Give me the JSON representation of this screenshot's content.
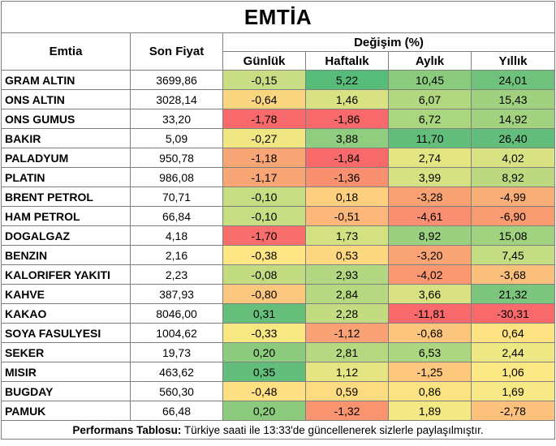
{
  "title": "EMTİA",
  "headers": {
    "name": "Emtia",
    "price": "Son Fiyat",
    "change_group": "Değişim (%)",
    "daily": "Günlük",
    "weekly": "Haftalık",
    "monthly": "Aylık",
    "yearly": "Yıllık"
  },
  "rows": [
    {
      "name": "GRAM ALTIN",
      "price": "3699,86",
      "daily": "-0,15",
      "weekly": "5,22",
      "monthly": "10,45",
      "yearly": "24,01",
      "colors": [
        "#c9de84",
        "#57bb7a",
        "#8bcb7e",
        "#6ec27c"
      ]
    },
    {
      "name": "ONS ALTIN",
      "price": "3028,14",
      "daily": "-0,64",
      "weekly": "1,46",
      "monthly": "6,07",
      "yearly": "15,43",
      "colors": [
        "#fbd681",
        "#d9e283",
        "#b1d780",
        "#9fd17f"
      ]
    },
    {
      "name": "ONS GUMUS",
      "price": "33,20",
      "daily": "-1,78",
      "weekly": "-1,86",
      "monthly": "6,72",
      "yearly": "14,92",
      "colors": [
        "#f8696b",
        "#f8696b",
        "#abd680",
        "#a1d27f"
      ]
    },
    {
      "name": "BAKIR",
      "price": "5,09",
      "daily": "-0,27",
      "weekly": "3,88",
      "monthly": "11,70",
      "yearly": "26,40",
      "colors": [
        "#f0e784",
        "#91cd7e",
        "#63be7b",
        "#63be7b"
      ]
    },
    {
      "name": "PALADYUM",
      "price": "950,78",
      "daily": "-1,18",
      "weekly": "-1,84",
      "monthly": "2,74",
      "yearly": "4,02",
      "colors": [
        "#f9a676",
        "#f8696b",
        "#e4e583",
        "#d8e283"
      ]
    },
    {
      "name": "PLATIN",
      "price": "986,08",
      "daily": "-1,17",
      "weekly": "-1,36",
      "monthly": "3,99",
      "yearly": "8,92",
      "colors": [
        "#f9a676",
        "#f99170",
        "#d5e182",
        "#bcd981"
      ]
    },
    {
      "name": "BRENT PETROL",
      "price": "70,71",
      "daily": "-0,10",
      "weekly": "0,18",
      "monthly": "-3,28",
      "yearly": "-4,99",
      "colors": [
        "#c6dd82",
        "#fdcf7e",
        "#f8a273",
        "#f9ad77"
      ]
    },
    {
      "name": "HAM PETROL",
      "price": "66,84",
      "daily": "-0,10",
      "weekly": "-0,51",
      "monthly": "-4,61",
      "yearly": "-6,90",
      "colors": [
        "#c6dd82",
        "#fcb87a",
        "#f98e70",
        "#f99b71"
      ]
    },
    {
      "name": "DOGALGAZ",
      "price": "4,18",
      "daily": "-1,70",
      "weekly": "1,73",
      "monthly": "8,92",
      "yearly": "15,08",
      "colors": [
        "#f86e6c",
        "#d4e182",
        "#9ad07f",
        "#a0d27f"
      ]
    },
    {
      "name": "BENZIN",
      "price": "2,16",
      "daily": "-0,38",
      "weekly": "0,53",
      "monthly": "-3,20",
      "yearly": "7,45",
      "colors": [
        "#fde683",
        "#fed880",
        "#f8a474",
        "#c4dc82"
      ]
    },
    {
      "name": "KALORIFER YAKITI",
      "price": "2,23",
      "daily": "-0,08",
      "weekly": "2,93",
      "monthly": "-4,02",
      "yearly": "-3,68",
      "colors": [
        "#c3dc82",
        "#b2d780",
        "#f99871",
        "#fbbf7c"
      ]
    },
    {
      "name": "KAHVE",
      "price": "387,93",
      "daily": "-0,80",
      "weekly": "2,84",
      "monthly": "3,66",
      "yearly": "21,32",
      "colors": [
        "#fbc67d",
        "#b5d880",
        "#d8e283",
        "#7cc57c"
      ]
    },
    {
      "name": "KAKAO",
      "price": "8046,00",
      "daily": "0,31",
      "weekly": "2,28",
      "monthly": "-11,81",
      "yearly": "-30,31",
      "colors": [
        "#65bf7b",
        "#c3dc82",
        "#f8696b",
        "#f8696b"
      ]
    },
    {
      "name": "SOYA FASULYESI",
      "price": "1004,62",
      "daily": "-0,33",
      "weekly": "-1,12",
      "monthly": "-0,68",
      "yearly": "0,64",
      "colors": [
        "#f7e884",
        "#faa275",
        "#fcc57d",
        "#fde283"
      ]
    },
    {
      "name": "SEKER",
      "price": "19,73",
      "daily": "0,20",
      "weekly": "2,81",
      "monthly": "6,53",
      "yearly": "2,44",
      "colors": [
        "#8ccb7e",
        "#b6d880",
        "#add680",
        "#ede784"
      ]
    },
    {
      "name": "MISIR",
      "price": "463,62",
      "daily": "0,35",
      "weekly": "1,12",
      "monthly": "-1,25",
      "yearly": "1,06",
      "colors": [
        "#63be7b",
        "#e5e583",
        "#fdc77d",
        "#fce985"
      ]
    },
    {
      "name": "BUGDAY",
      "price": "560,30",
      "daily": "-0,48",
      "weekly": "0,59",
      "monthly": "0,86",
      "yearly": "1,69",
      "colors": [
        "#fde083",
        "#fcdb81",
        "#fbe283",
        "#f6e884"
      ]
    },
    {
      "name": "PAMUK",
      "price": "66,48",
      "daily": "0,20",
      "weekly": "-1,32",
      "monthly": "1,89",
      "yearly": "-2,78",
      "colors": [
        "#8ccb7e",
        "#f99471",
        "#f4e884",
        "#fcc17c"
      ]
    }
  ],
  "footer": {
    "bold": "Performans Tablosu:",
    "text": " Türkiye saati ile 13:33'de güncellenerek sizlerle paylaşılmıştır."
  }
}
